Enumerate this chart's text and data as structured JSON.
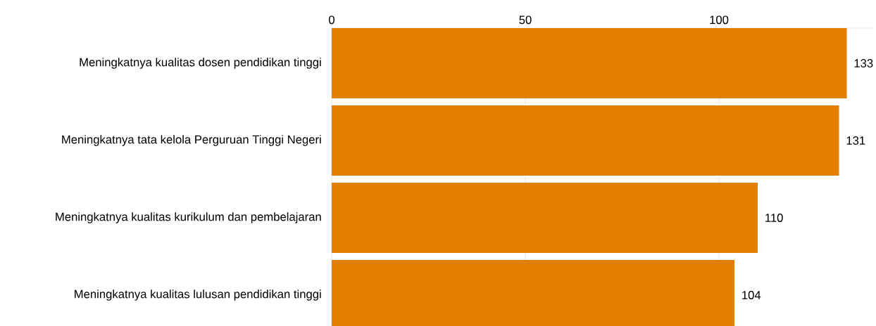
{
  "chart_data": {
    "type": "bar",
    "orientation": "horizontal",
    "categories": [
      "Meningkatnya kualitas dosen pendidikan tinggi",
      "Meningkatnya tata kelola Perguruan Tinggi Negeri",
      "Meningkatnya kualitas kurikulum dan pembelajaran",
      "Meningkatnya kualitas lulusan pendidikan tinggi"
    ],
    "values": [
      133,
      131,
      110,
      104
    ],
    "color": "#e37f00",
    "xlim": [
      0,
      140
    ],
    "xticks": [
      0,
      50,
      100
    ],
    "grid": "x",
    "data_labels": true
  }
}
